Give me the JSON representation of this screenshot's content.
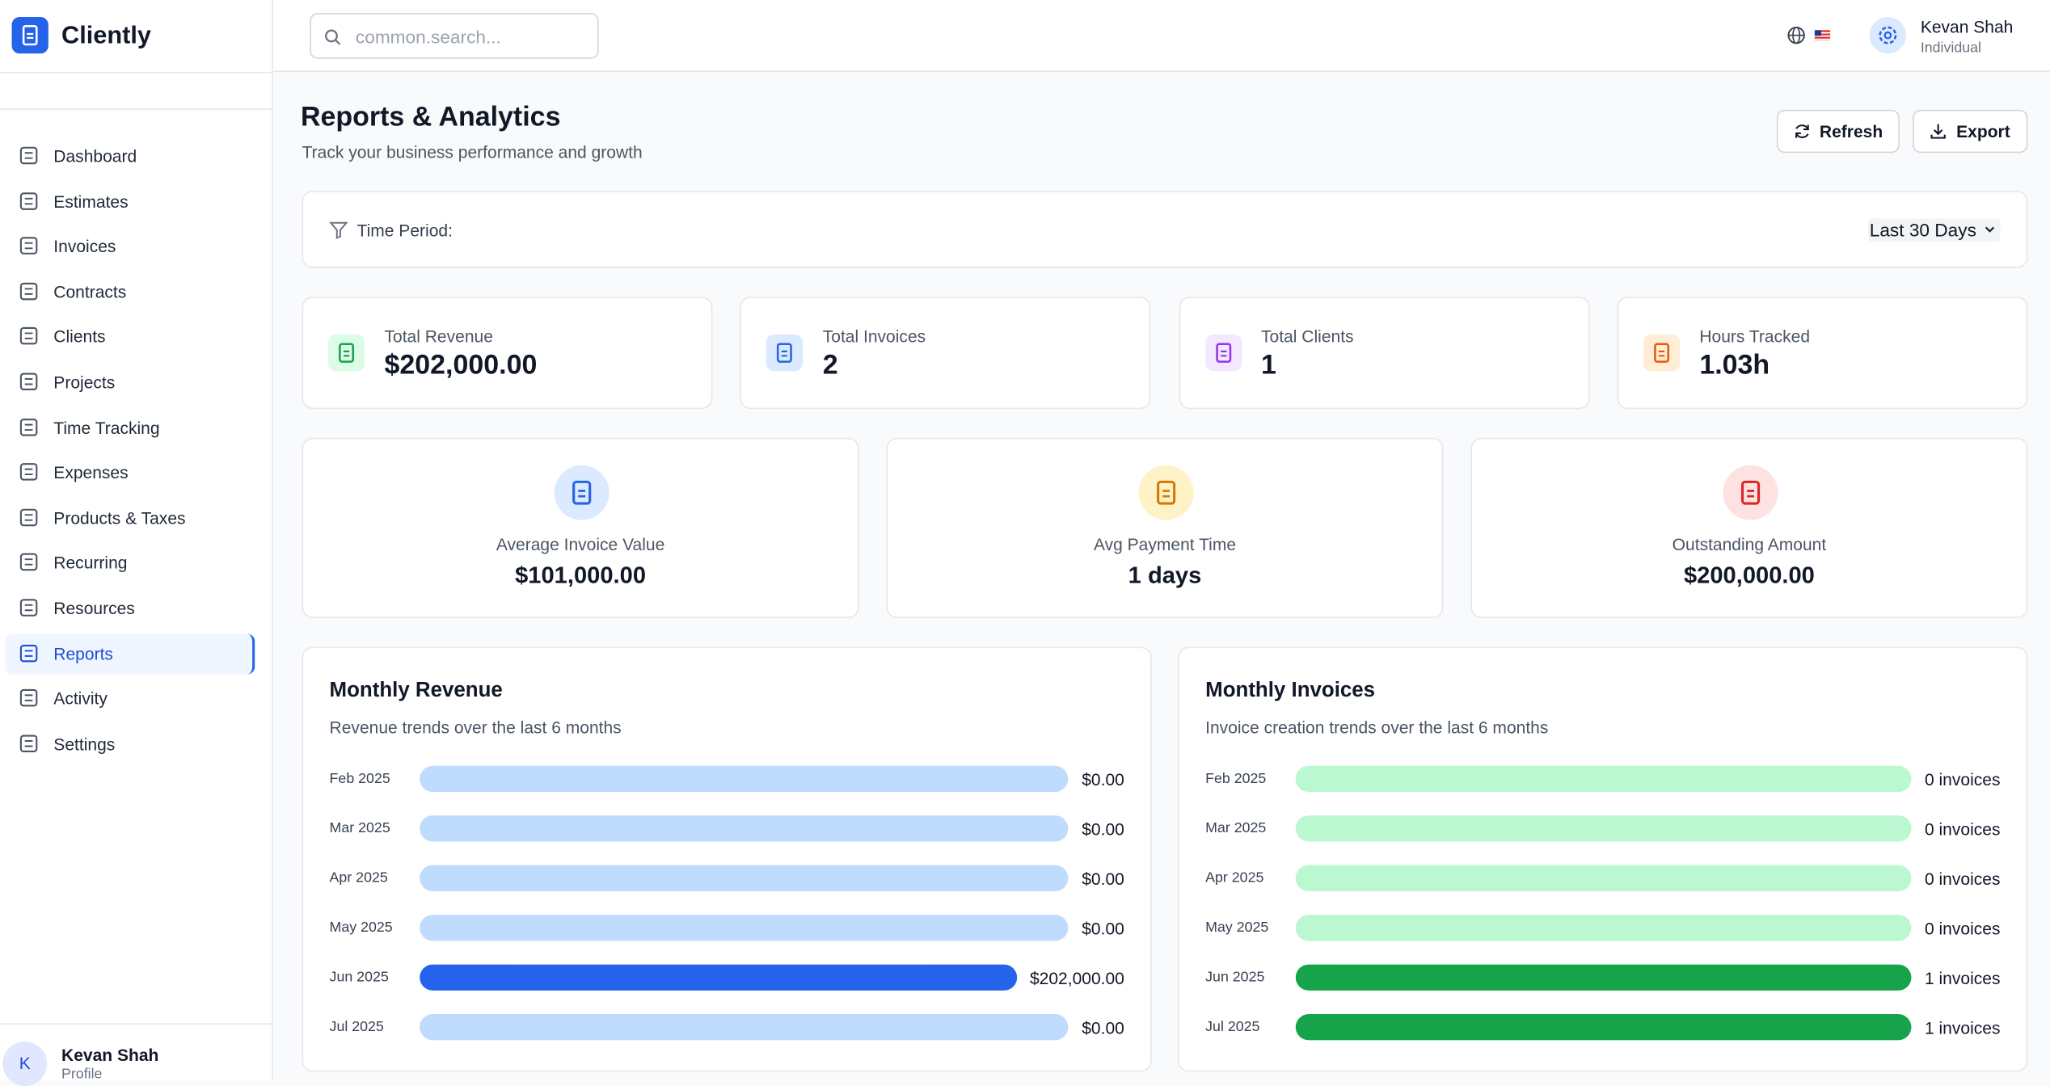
{
  "brand": "Cliently",
  "search_placeholder": "common.search...",
  "user": {
    "name": "Kevan Shah",
    "role": "Individual"
  },
  "nav": [
    {
      "label": "Dashboard"
    },
    {
      "label": "Estimates"
    },
    {
      "label": "Invoices"
    },
    {
      "label": "Contracts"
    },
    {
      "label": "Clients"
    },
    {
      "label": "Projects"
    },
    {
      "label": "Time Tracking"
    },
    {
      "label": "Expenses"
    },
    {
      "label": "Products & Taxes"
    },
    {
      "label": "Recurring"
    },
    {
      "label": "Resources"
    },
    {
      "label": "Reports",
      "active": true
    },
    {
      "label": "Activity"
    },
    {
      "label": "Settings"
    }
  ],
  "profile": {
    "initial": "K",
    "name": "Kevan Shah",
    "caption": "Profile"
  },
  "page": {
    "title": "Reports & Analytics",
    "subtitle": "Track your business performance and growth"
  },
  "actions": [
    "Refresh",
    "Export"
  ],
  "filter": {
    "label": "Time Period:",
    "value": "Last 30 Days"
  },
  "stats": [
    {
      "label": "Total Revenue",
      "value": "$202,000.00",
      "bg": "#dcfce7",
      "color": "#16a34a"
    },
    {
      "label": "Total Invoices",
      "value": "2",
      "bg": "#dbeafe",
      "color": "#2563eb"
    },
    {
      "label": "Total Clients",
      "value": "1",
      "bg": "#f3e8ff",
      "color": "#9333ea"
    },
    {
      "label": "Hours Tracked",
      "value": "1.03h",
      "bg": "#ffedd5",
      "color": "#ea580c"
    }
  ],
  "metrics": [
    {
      "label": "Average Invoice Value",
      "value": "$101,000.00",
      "bg": "#dbeafe",
      "color": "#2563eb"
    },
    {
      "label": "Avg Payment Time",
      "value": "1 days",
      "bg": "#fef3c7",
      "color": "#d97706"
    },
    {
      "label": "Outstanding Amount",
      "value": "$200,000.00",
      "bg": "#fee2e2",
      "color": "#dc2626"
    }
  ],
  "charts": [
    {
      "title": "Monthly Revenue",
      "subtitle": "Revenue trends over the last 6 months",
      "color": "#2563eb",
      "track_color": "#bfdbfe",
      "months": [
        "Feb 2025",
        "Mar 2025",
        "Apr 2025",
        "May 2025",
        "Jun 2025",
        "Jul 2025"
      ],
      "values": [
        0,
        0,
        0,
        0,
        202000,
        0
      ],
      "value_labels": [
        "$0.00",
        "$0.00",
        "$0.00",
        "$0.00",
        "$202,000.00",
        "$0.00"
      ]
    },
    {
      "title": "Monthly Invoices",
      "subtitle": "Invoice creation trends over the last 6 months",
      "color": "#16a34a",
      "track_color": "#bbf7d0",
      "months": [
        "Feb 2025",
        "Mar 2025",
        "Apr 2025",
        "May 2025",
        "Jun 2025",
        "Jul 2025"
      ],
      "values": [
        0,
        0,
        0,
        0,
        1,
        1
      ],
      "value_labels": [
        "0 invoices",
        "0 invoices",
        "0 invoices",
        "0 invoices",
        "1 invoices",
        "1 invoices"
      ]
    }
  ]
}
